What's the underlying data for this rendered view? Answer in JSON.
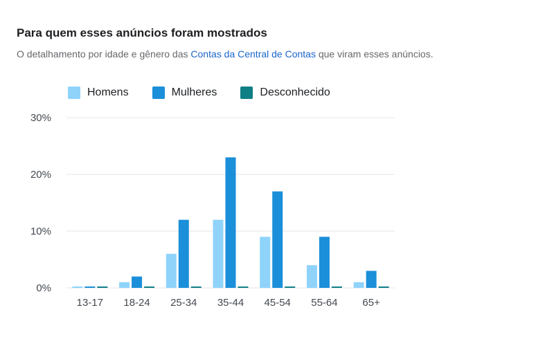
{
  "header": {
    "title": "Para quem esses anúncios foram mostrados",
    "subtitle_before": "O detalhamento por idade e gênero das ",
    "subtitle_link": "Contas da Central de Contas",
    "subtitle_after": " que viram esses anúncios."
  },
  "colors": {
    "homens": "#8fd3fb",
    "mulheres": "#1b8fd9",
    "desconhecido": "#0f7f86",
    "grid": "#e4e6eb"
  },
  "chart_data": {
    "type": "bar",
    "categories": [
      "13-17",
      "18-24",
      "25-34",
      "35-44",
      "45-54",
      "55-64",
      "65+"
    ],
    "series": [
      {
        "name": "Homens",
        "values": [
          0,
          1,
          6,
          12,
          9,
          4,
          1
        ]
      },
      {
        "name": "Mulheres",
        "values": [
          0,
          2,
          12,
          23,
          17,
          9,
          3
        ]
      },
      {
        "name": "Desconhecido",
        "values": [
          0,
          0,
          0,
          0,
          0,
          0,
          0
        ]
      }
    ],
    "y_ticks": [
      "0%",
      "10%",
      "20%",
      "30%"
    ],
    "ylim": [
      0,
      30
    ],
    "legend_position": "top-left",
    "grid": true
  }
}
